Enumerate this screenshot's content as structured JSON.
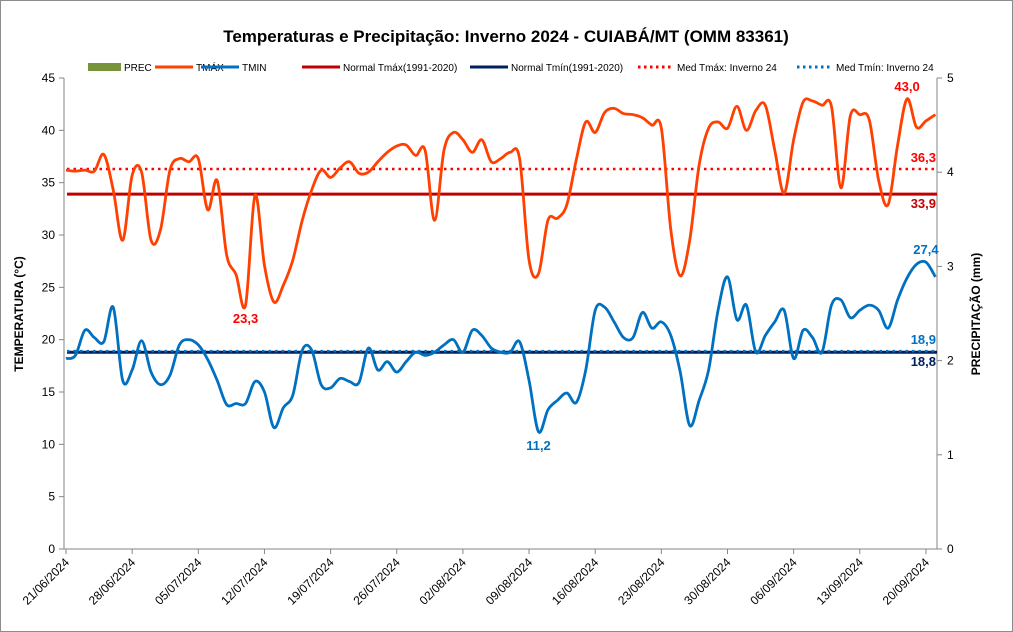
{
  "chart_data": {
    "type": "line",
    "title": "Temperaturas  e Precipitação:  Inverno 2024 - CUIABÁ/MT (OMM 83361)",
    "ylabel": "TEMPERATURA  (°C)",
    "y2label": "PRECIPITAÇÃO  (mm)",
    "xlabel": "",
    "ylim": [
      0,
      45
    ],
    "y2lim": [
      0,
      5
    ],
    "yticks": [
      "0",
      "5",
      "10",
      "15",
      "20",
      "25",
      "30",
      "35",
      "40",
      "45"
    ],
    "y2ticks": [
      "0",
      "1",
      "2",
      "3",
      "4",
      "5"
    ],
    "start_date": "21/06/2024",
    "xtick_labels": [
      "21/06/2024",
      "28/06/2024",
      "05/07/2024",
      "12/07/2024",
      "19/07/2024",
      "26/07/2024",
      "02/08/2024",
      "09/08/2024",
      "16/08/2024",
      "23/08/2024",
      "30/08/2024",
      "06/09/2024",
      "13/09/2024",
      "20/09/2024"
    ],
    "xtick_step_days": 7,
    "grid": false,
    "legend_position": "top",
    "legend": [
      "PREC",
      "TMÁX",
      "TMIN",
      "Normal Tmáx(1991-2020)",
      "Normal Tmín(1991-2020)",
      "Med Tmáx: Inverno 24",
      "Med Tmín: Inverno 24"
    ],
    "series": [
      {
        "name": "TMÁX",
        "color": "#ff4000",
        "values": [
          36.2,
          36.1,
          36.2,
          36.1,
          37.7,
          34.3,
          29.5,
          35.7,
          36.0,
          29.5,
          30.5,
          36.2,
          37.3,
          37.0,
          37.3,
          32.4,
          35.2,
          28.1,
          26.2,
          23.3,
          33.8,
          27.1,
          23.6,
          25.2,
          27.6,
          31.4,
          34.3,
          36.2,
          35.5,
          36.4,
          37.0,
          35.9,
          36.0,
          37.0,
          37.9,
          38.5,
          38.6,
          37.6,
          38.1,
          31.4,
          38.1,
          39.8,
          39.1,
          37.9,
          39.1,
          37.0,
          37.3,
          37.9,
          37.3,
          27.6,
          26.3,
          31.4,
          31.6,
          32.9,
          37.2,
          40.8,
          39.8,
          41.7,
          42.1,
          41.6,
          41.5,
          41.2,
          40.5,
          40.2,
          30.5,
          26.1,
          29.5,
          36.7,
          40.2,
          40.8,
          40.2,
          42.3,
          40.0,
          41.9,
          42.4,
          38.1,
          34.0,
          39.1,
          42.7,
          42.8,
          42.4,
          42.3,
          34.5,
          41.4,
          41.5,
          41.0,
          35.2,
          32.9,
          38.6,
          43.0,
          40.3,
          40.9,
          41.5
        ]
      },
      {
        "name": "TMIN",
        "color": "#0070c0",
        "values": [
          18.2,
          18.5,
          20.9,
          20.2,
          19.8,
          23.1,
          16.1,
          17.1,
          19.9,
          16.9,
          15.7,
          16.6,
          19.5,
          20.0,
          19.5,
          18.1,
          16.1,
          13.8,
          13.9,
          13.9,
          16.0,
          15.0,
          11.6,
          13.5,
          14.7,
          19.0,
          19.0,
          15.7,
          15.4,
          16.3,
          16.0,
          15.9,
          19.2,
          17.1,
          17.9,
          16.9,
          17.9,
          18.8,
          18.5,
          18.8,
          19.5,
          20.0,
          18.8,
          20.9,
          20.4,
          19.2,
          18.8,
          18.8,
          19.8,
          16.1,
          11.2,
          13.3,
          14.2,
          14.9,
          14.0,
          17.1,
          22.8,
          23.1,
          21.7,
          20.2,
          20.2,
          22.6,
          21.1,
          21.7,
          20.4,
          16.9,
          11.8,
          14.2,
          17.1,
          22.8,
          26.0,
          21.9,
          23.3,
          18.8,
          20.4,
          21.7,
          22.8,
          18.2,
          20.9,
          20.2,
          18.8,
          23.3,
          23.8,
          22.1,
          22.8,
          23.3,
          22.8,
          21.1,
          23.8,
          25.9,
          27.2,
          27.4,
          26.0
        ]
      }
    ],
    "reference_lines": [
      {
        "name": "Normal Tmáx(1991-2020)",
        "value": 33.9,
        "label": "33,9",
        "color": "#c00000",
        "style": "solid"
      },
      {
        "name": "Normal Tmín(1991-2020)",
        "value": 18.8,
        "label": "18,8",
        "color": "#002060",
        "style": "solid"
      },
      {
        "name": "Med Tmáx: Inverno 24",
        "value": 36.3,
        "label": "36,3",
        "color": "#ff0000",
        "style": "dotted"
      },
      {
        "name": "Med Tmín: Inverno 24",
        "value": 18.9,
        "label": "18,9",
        "color": "#0070c0",
        "style": "dotted"
      }
    ],
    "annotations": [
      {
        "series": "TMÁX",
        "index": 19,
        "label": "23,3",
        "position": "below"
      },
      {
        "series": "TMÁX",
        "index": 89,
        "label": "43,0",
        "position": "above"
      },
      {
        "series": "TMIN",
        "index": 50,
        "label": "11,2",
        "position": "below"
      },
      {
        "series": "TMIN",
        "index": 91,
        "label": "27,4",
        "position": "above"
      }
    ],
    "prec_color": "#77933c",
    "prec_values": []
  }
}
